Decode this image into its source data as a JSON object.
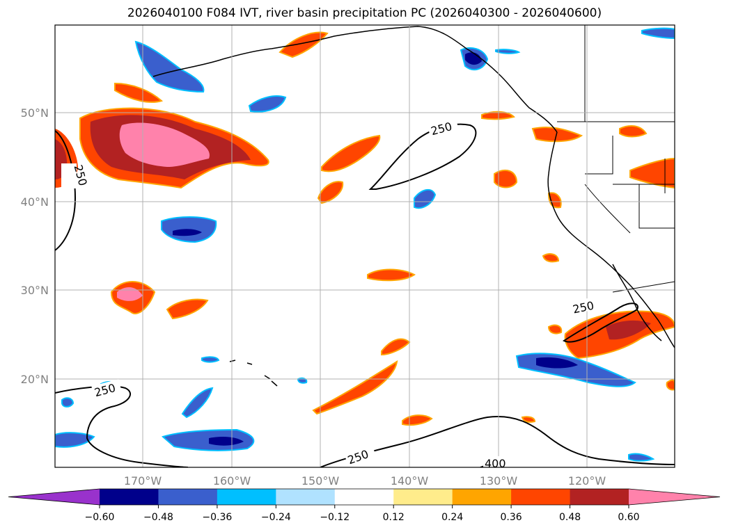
{
  "title": "2026040100 F084 IVT, river basin precipitation PC (2026040300 - 2026040600)",
  "map": {
    "lon_ticks": [
      "170°W",
      "160°W",
      "150°W",
      "140°W",
      "130°W",
      "120°W"
    ],
    "lat_ticks": [
      "50°N",
      "40°N",
      "30°N",
      "20°N"
    ],
    "contour_labels": [
      "250",
      "250",
      "250",
      "250",
      "250",
      "400"
    ]
  },
  "colorbar": {
    "ticks": [
      "−0.60",
      "−0.48",
      "−0.36",
      "−0.24",
      "−0.12",
      "0.12",
      "0.24",
      "0.36",
      "0.48",
      "0.60"
    ],
    "colors": [
      "#9932cc",
      "#00008b",
      "#3a5fcd",
      "#00bfff",
      "#b0e2ff",
      "#ffffff",
      "#ffec8b",
      "#ffa500",
      "#ff4500",
      "#b22222",
      "#ff82ab"
    ]
  },
  "colors": {
    "grid": "#b0b0b0",
    "coast": "#000000"
  }
}
